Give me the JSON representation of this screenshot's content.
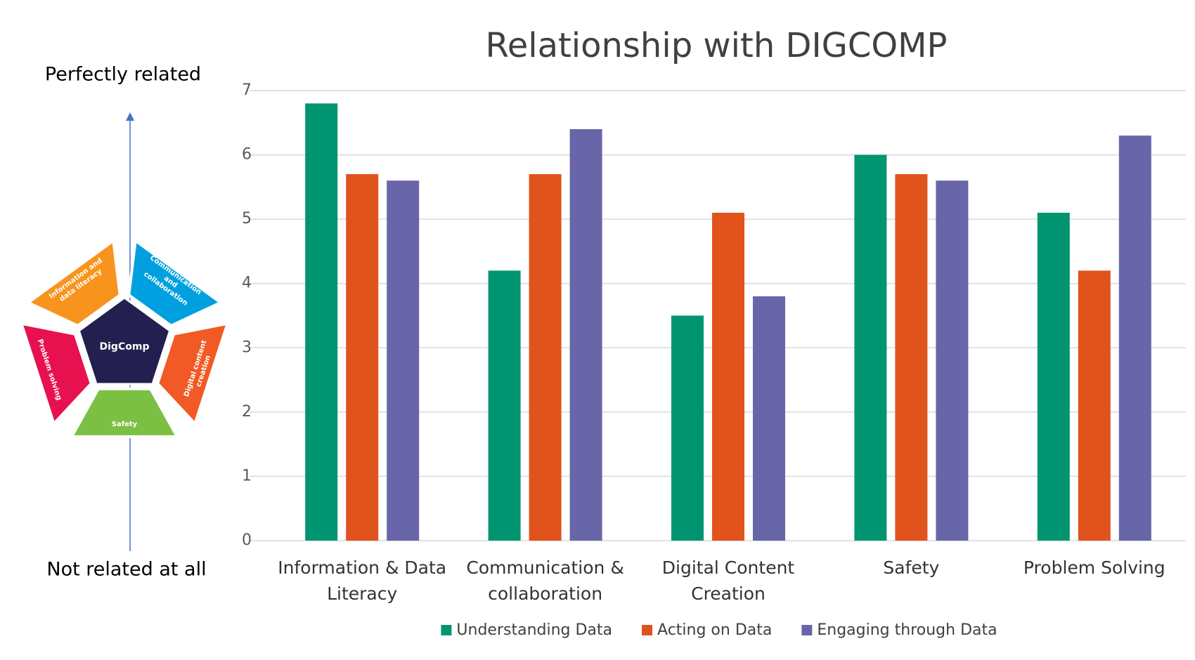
{
  "chart_data": {
    "type": "bar",
    "title": "Relationship with DIGCOMP",
    "categories": [
      "Information & Data Literacy",
      "Communication & collaboration",
      "Digital Content Creation",
      "Safety",
      "Problem Solving"
    ],
    "series": [
      {
        "name": "Understanding Data",
        "color": "#009470",
        "values": [
          6.8,
          4.2,
          3.5,
          6.0,
          5.1
        ]
      },
      {
        "name": "Acting on Data",
        "color": "#e0531d",
        "values": [
          5.7,
          5.7,
          5.1,
          5.7,
          4.2
        ]
      },
      {
        "name": "Engaging through Data",
        "color": "#6866a8",
        "values": [
          5.6,
          6.4,
          3.8,
          5.6,
          6.3
        ]
      }
    ],
    "ylim": [
      0,
      7
    ],
    "yticks": [
      0,
      1,
      2,
      3,
      4,
      5,
      6,
      7
    ],
    "grid": true,
    "legend": "bottom"
  },
  "scale": {
    "top": "Perfectly related",
    "bottom": "Not related at all"
  },
  "digcomp": {
    "center": "DigComp",
    "segments": [
      {
        "lines": [
          "Information and",
          "data literacy"
        ],
        "color": "#f7941d"
      },
      {
        "lines": [
          "Communication",
          "and",
          "collaboration"
        ],
        "color": "#00a0e0"
      },
      {
        "lines": [
          "Digital content",
          "creation"
        ],
        "color": "#f15a24"
      },
      {
        "lines": [
          "Safety"
        ],
        "color": "#7bc043"
      },
      {
        "lines": [
          "Problem solving"
        ],
        "color": "#e8114f"
      }
    ]
  }
}
